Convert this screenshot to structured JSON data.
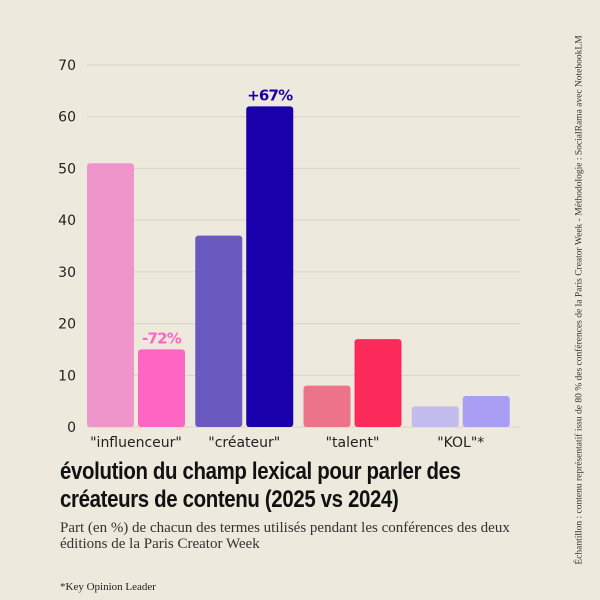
{
  "chart_data": {
    "type": "bar",
    "categories": [
      "\"influenceur\"",
      "\"créateur\"",
      "\"talent\"",
      "\"KOL\"*"
    ],
    "series": [
      {
        "values": [
          51,
          37,
          8,
          4
        ]
      },
      {
        "values": [
          15,
          62,
          17,
          6
        ]
      }
    ],
    "bar_colors": [
      [
        "#EE95CC",
        "#FF66C4"
      ],
      [
        "#6A5ABF",
        "#1A00AA"
      ],
      [
        "#EC7389",
        "#FC2A5B"
      ],
      [
        "#C3BCEE",
        "#A89FF5"
      ]
    ],
    "annotations": [
      {
        "category": "\"influenceur\"",
        "series": 1,
        "text": "-72%",
        "color": "#FF66C4"
      },
      {
        "category": "\"créateur\"",
        "series": 1,
        "text": "+67%",
        "color": "#1A00AA"
      }
    ],
    "yticks": [
      0,
      10,
      20,
      30,
      40,
      50,
      60,
      70
    ],
    "ylim": [
      0,
      70
    ],
    "grid": true,
    "title": "évolution du champ lexical pour parler des créateurs de contenu (2025 vs 2024)",
    "subtitle": "Part (en %) de chacun des termes utilisés pendant les conférences des deux éditions de la Paris Creator Week",
    "xlabel": "",
    "ylabel": ""
  },
  "footnote": "*Key Opinion Leader",
  "side_note": "Échantillon : contenu représentatif issu de 80 % des conférences de la Paris Creator Week - Méthodologie : SocialRama avec NotebookLM"
}
